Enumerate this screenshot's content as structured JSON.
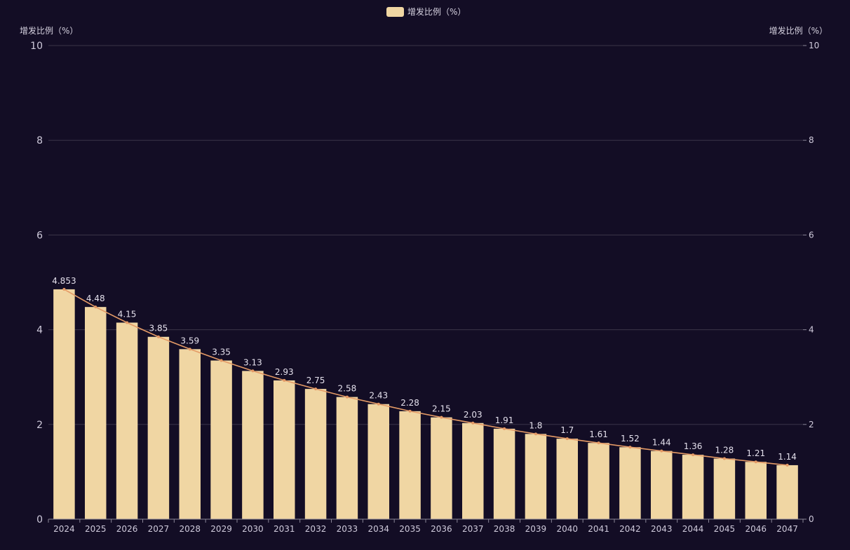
{
  "chart_data": {
    "type": "bar",
    "legend": {
      "label": "增发比例（%）",
      "position": "top-center"
    },
    "y_axis_left": {
      "title": "增发比例（%）",
      "range": [
        0,
        10
      ],
      "ticks": [
        0,
        2,
        4,
        6,
        8,
        10
      ]
    },
    "y_axis_right": {
      "title": "增发比例（%）",
      "range": [
        0,
        10
      ],
      "ticks": [
        0,
        2,
        4,
        6,
        8,
        10
      ]
    },
    "categories": [
      "2024",
      "2025",
      "2026",
      "2027",
      "2028",
      "2029",
      "2030",
      "2031",
      "2032",
      "2033",
      "2034",
      "2035",
      "2036",
      "2037",
      "2038",
      "2039",
      "2040",
      "2041",
      "2042",
      "2043",
      "2044",
      "2045",
      "2046",
      "2047"
    ],
    "series": [
      {
        "name": "增发比例（%）",
        "type": "bar",
        "values": [
          4.853,
          4.48,
          4.15,
          3.85,
          3.59,
          3.35,
          3.13,
          2.93,
          2.75,
          2.58,
          2.43,
          2.28,
          2.15,
          2.03,
          1.91,
          1.8,
          1.7,
          1.61,
          1.52,
          1.44,
          1.36,
          1.28,
          1.21,
          1.14
        ],
        "data_labels": [
          "4.853",
          "4.48",
          "4.15",
          "3.85",
          "3.59",
          "3.35",
          "3.13",
          "2.93",
          "2.75",
          "2.58",
          "2.43",
          "2.28",
          "2.15",
          "2.03",
          "1.91",
          "1.8",
          "1.7",
          "1.61",
          "1.52",
          "1.44",
          "1.36",
          "1.28",
          "1.21",
          "1.14"
        ]
      },
      {
        "type": "line",
        "axis": "right",
        "values": [
          4.853,
          4.48,
          4.15,
          3.85,
          3.59,
          3.35,
          3.13,
          2.93,
          2.75,
          2.58,
          2.43,
          2.28,
          2.15,
          2.03,
          1.91,
          1.8,
          1.7,
          1.61,
          1.52,
          1.44,
          1.36,
          1.28,
          1.21,
          1.14
        ]
      }
    ],
    "grid": true,
    "colors": {
      "background": "#130d25",
      "bar": "#f0d6a3",
      "line": "#e49a66",
      "grid": "#3b3548"
    }
  }
}
